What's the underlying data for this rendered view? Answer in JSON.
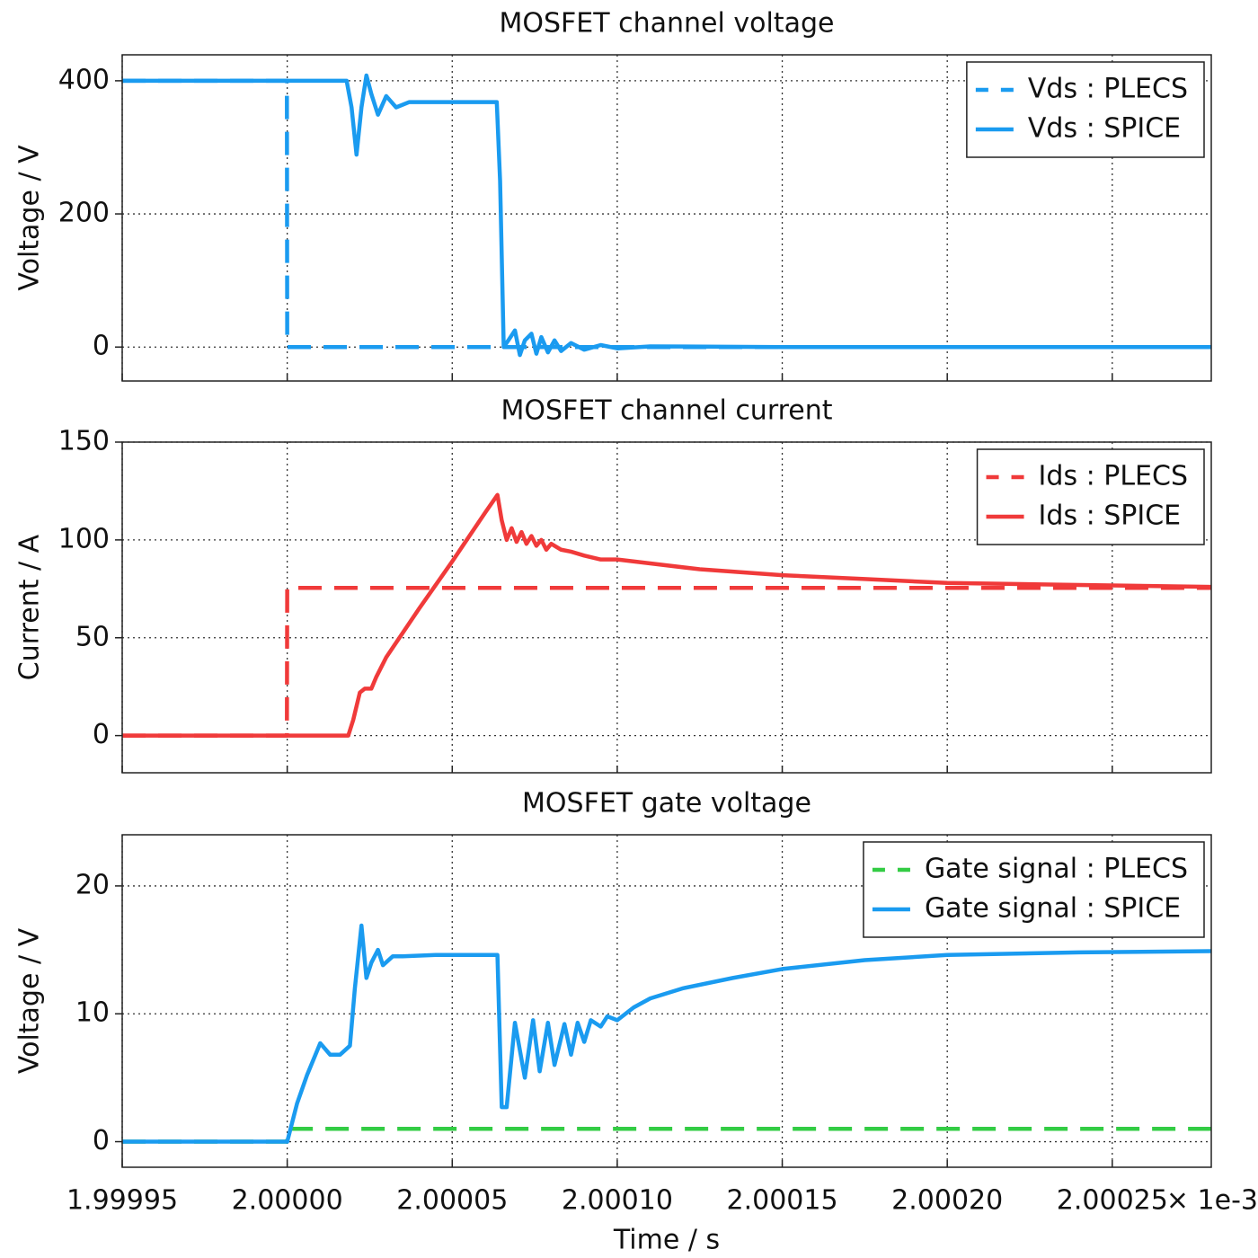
{
  "chart_data": [
    {
      "type": "line",
      "title": "MOSFET channel voltage",
      "ylabel": "Voltage / V",
      "x": [
        1.99995,
        1.9999999,
        2,
        2.00001,
        2.000018,
        2.0000195,
        2.000021,
        2.0000225,
        2.000024,
        2.0000255,
        2.0000275,
        2.00003,
        2.000033,
        2.000037,
        2.000045,
        2.000055,
        2.0000635,
        2.0000645,
        2.0000656,
        2.000067,
        2.000069,
        2.0000705,
        2.000072,
        2.000074,
        2.0000755,
        2.000077,
        2.000079,
        2.000081,
        2.000083,
        2.000086,
        2.00009,
        2.000095,
        2.0001,
        2.00011,
        2.00015,
        2.0002,
        2.00028
      ],
      "series": [
        {
          "name": "Vds : PLECS",
          "color": "#1a9bf0",
          "dashed": true,
          "values": [
            400,
            400,
            0,
            0,
            0,
            0,
            0,
            0,
            0,
            0,
            0,
            0,
            0,
            0,
            0,
            0,
            0,
            0,
            0,
            0,
            0,
            0,
            0,
            0,
            0,
            0,
            0,
            0,
            0,
            0,
            0,
            0,
            0,
            0,
            0,
            0,
            0
          ]
        },
        {
          "name": "Vds : SPICE",
          "color": "#1a9bf0",
          "dashed": false,
          "values": [
            400,
            400,
            400,
            400,
            400,
            360,
            289,
            360,
            408,
            380,
            349,
            377,
            360,
            368,
            368,
            368,
            368,
            250,
            0,
            10,
            25,
            -12,
            10,
            20,
            -10,
            15,
            -8,
            10,
            -6,
            6,
            -4,
            3,
            -2,
            1,
            0,
            0,
            0
          ]
        }
      ],
      "xlim": [
        1.99995,
        2.00028
      ],
      "xticks": [
        1.99995,
        2,
        2.00005,
        2.0001,
        2.00015,
        2.0002,
        2.00025
      ],
      "ylim": [
        -51,
        439
      ],
      "yticks": [
        0,
        200,
        400
      ],
      "grid": true,
      "legend": "upper right"
    },
    {
      "type": "line",
      "title": "MOSFET channel current",
      "ylabel": "Current / A",
      "x": [
        1.99995,
        1.9999999,
        2,
        2.00001,
        2.0000185,
        2.00002,
        2.000022,
        2.0000235,
        2.0000255,
        2.000027,
        2.00003,
        2.00004,
        2.00005,
        2.00006,
        2.0000637,
        2.000065,
        2.0000665,
        2.000068,
        2.0000695,
        2.000071,
        2.0000725,
        2.000074,
        2.0000755,
        2.000077,
        2.0000785,
        2.00008,
        2.000083,
        2.000086,
        2.00009,
        2.000095,
        2.0001,
        2.00011,
        2.000125,
        2.00015,
        2.000175,
        2.0002,
        2.00024,
        2.00028
      ],
      "series": [
        {
          "name": "Ids : PLECS",
          "color": "#f03a3a",
          "dashed": true,
          "values": [
            0,
            0,
            75.5,
            75.5,
            75.5,
            75.5,
            75.5,
            75.5,
            75.5,
            75.5,
            75.5,
            75.5,
            75.5,
            75.5,
            75.5,
            75.5,
            75.5,
            75.5,
            75.5,
            75.5,
            75.5,
            75.5,
            75.5,
            75.5,
            75.5,
            75.5,
            75.5,
            75.5,
            75.5,
            75.5,
            75.5,
            75.5,
            75.5,
            75.5,
            75.5,
            75.5,
            75.5,
            75.5
          ]
        },
        {
          "name": "Ids : SPICE",
          "color": "#f03a3a",
          "dashed": false,
          "values": [
            0,
            0,
            0,
            0,
            0,
            8,
            22,
            24,
            24,
            30,
            40,
            65,
            89,
            114,
            123,
            110,
            100,
            106,
            99,
            104,
            98,
            102,
            97,
            100,
            95,
            98,
            95,
            94,
            92,
            90,
            90,
            88,
            85,
            82,
            80,
            78,
            77,
            76
          ]
        }
      ],
      "xlim": [
        1.99995,
        2.00028
      ],
      "xticks": [
        1.99995,
        2,
        2.00005,
        2.0001,
        2.00015,
        2.0002,
        2.00025
      ],
      "ylim": [
        -19,
        150
      ],
      "yticks": [
        0,
        50,
        100,
        150
      ],
      "grid": true,
      "legend": "upper right"
    },
    {
      "type": "line",
      "title": "MOSFET gate voltage",
      "ylabel": "Voltage / V",
      "xlabel": "Time / s",
      "x_offset_label": "× 1e-3",
      "x": [
        1.99995,
        1.9999999,
        2,
        2.000003,
        2.000006,
        2.00001,
        2.000013,
        2.000016,
        2.000019,
        2.0000205,
        2.0000225,
        2.000024,
        2.0000255,
        2.0000275,
        2.000029,
        2.000032,
        2.000035,
        2.000045,
        2.000055,
        2.0000637,
        2.000065,
        2.0000665,
        2.000069,
        2.000072,
        2.0000745,
        2.0000765,
        2.000079,
        2.000081,
        2.000084,
        2.000086,
        2.000088,
        2.00009,
        2.000092,
        2.000095,
        2.000097,
        2.0001,
        2.000105,
        2.00011,
        2.00012,
        2.000135,
        2.00015,
        2.000175,
        2.0002,
        2.00024,
        2.00028
      ],
      "series": [
        {
          "name": "Gate signal : PLECS",
          "color": "#33cc44",
          "dashed": true,
          "values": [
            0,
            0,
            1,
            1,
            1,
            1,
            1,
            1,
            1,
            1,
            1,
            1,
            1,
            1,
            1,
            1,
            1,
            1,
            1,
            1,
            1,
            1,
            1,
            1,
            1,
            1,
            1,
            1,
            1,
            1,
            1,
            1,
            1,
            1,
            1,
            1,
            1,
            1,
            1,
            1,
            1,
            1,
            1,
            1,
            1
          ]
        },
        {
          "name": "Gate signal : SPICE",
          "color": "#1a9bf0",
          "dashed": false,
          "values": [
            0,
            0,
            0,
            3,
            5.2,
            7.7,
            6.8,
            6.8,
            7.5,
            12,
            16.9,
            12.8,
            14,
            15,
            13.8,
            14.5,
            14.5,
            14.6,
            14.6,
            14.6,
            2.7,
            2.7,
            9.3,
            5,
            9.5,
            5.5,
            9.3,
            6,
            9.2,
            6.8,
            9.3,
            7.8,
            9.5,
            9,
            9.8,
            9.5,
            10.5,
            11.2,
            12,
            12.8,
            13.5,
            14.2,
            14.6,
            14.8,
            14.9
          ]
        }
      ],
      "xlim": [
        1.99995,
        2.00028
      ],
      "xticks": [
        1.99995,
        {
          "value": 2,
          "label": "2.00000"
        },
        2.00005,
        {
          "value": 2.0001,
          "label": "2.00010"
        },
        2.00015,
        {
          "value": 2.0002,
          "label": "2.00020"
        },
        2.00025
      ],
      "ylim": [
        -2,
        24
      ],
      "yticks": [
        0,
        10,
        20
      ],
      "grid": true,
      "legend": "upper right"
    }
  ]
}
